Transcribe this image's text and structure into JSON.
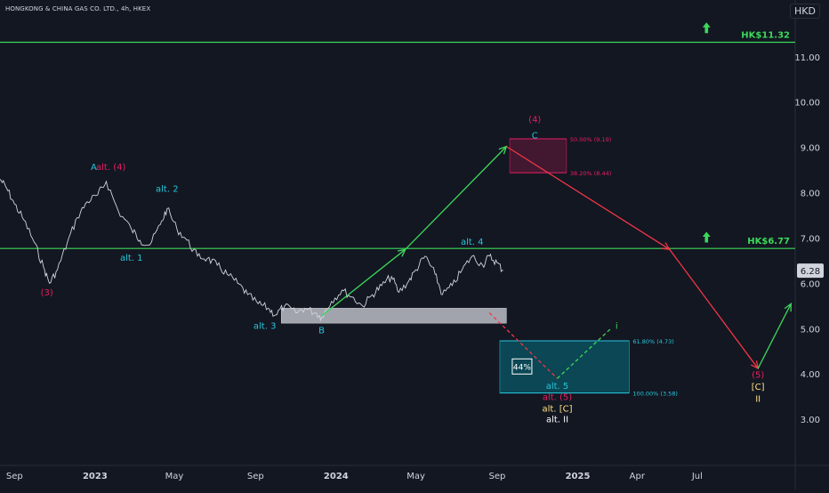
{
  "chart_title": "HONGKONG & CHINA GAS CO. LTD., 4h, HKEX",
  "currency": "HKD",
  "colors": {
    "background": "#131722",
    "axis_text": "#d1d4dc",
    "price": "#d1d4dc",
    "green": "#3cd85a",
    "red": "#f23645",
    "magenta": "#e91e63",
    "cyan": "#26c6da",
    "yellow": "#ffe082",
    "white": "#ffffff"
  },
  "chart_data": {
    "type": "line",
    "title": "HONGKONG & CHINA GAS CO. LTD., 4h, HKEX",
    "y_axis": {
      "ticks": [
        3.0,
        4.0,
        5.0,
        6.0,
        7.0,
        8.0,
        9.0,
        10.0,
        11.0
      ],
      "tick_labels": [
        "3.00",
        "4.00",
        "5.00",
        "6.00",
        "7.00",
        "8.00",
        "9.00",
        "10.00",
        "11.00"
      ],
      "range": [
        2.0,
        11.9
      ]
    },
    "x_axis": {
      "tick_labels": [
        "Sep",
        "2023",
        "May",
        "Sep",
        "2024",
        "May",
        "Sep",
        "2025",
        "Apr",
        "Jul"
      ],
      "tick_dates": [
        "2022-09-01",
        "2023-01-01",
        "2023-05-01",
        "2023-09-01",
        "2024-01-01",
        "2024-05-01",
        "2024-09-01",
        "2025-01-01",
        "2025-04-01",
        "2025-07-01"
      ],
      "range": [
        "2022-08-10",
        "2025-11-25"
      ]
    },
    "current_price": {
      "value": 6.28,
      "label": "6.28"
    },
    "price_path": [
      [
        "2022-08-10",
        8.3
      ],
      [
        "2022-08-20",
        8.1
      ],
      [
        "2022-09-01",
        7.75
      ],
      [
        "2022-09-15",
        7.4
      ],
      [
        "2022-10-01",
        6.9
      ],
      [
        "2022-10-15",
        6.35
      ],
      [
        "2022-10-24",
        6.0
      ],
      [
        "2022-11-05",
        6.3
      ],
      [
        "2022-11-20",
        6.9
      ],
      [
        "2022-12-05",
        7.45
      ],
      [
        "2022-12-20",
        7.8
      ],
      [
        "2023-01-05",
        7.95
      ],
      [
        "2023-01-18",
        8.25
      ],
      [
        "2023-02-05",
        7.6
      ],
      [
        "2023-02-25",
        7.2
      ],
      [
        "2023-03-10",
        6.95
      ],
      [
        "2023-03-25",
        6.85
      ],
      [
        "2023-04-10",
        7.3
      ],
      [
        "2023-04-20",
        7.65
      ],
      [
        "2023-05-05",
        7.2
      ],
      [
        "2023-05-20",
        6.95
      ],
      [
        "2023-06-05",
        6.6
      ],
      [
        "2023-06-20",
        6.55
      ],
      [
        "2023-07-05",
        6.4
      ],
      [
        "2023-07-20",
        6.2
      ],
      [
        "2023-08-05",
        6.0
      ],
      [
        "2023-08-20",
        5.75
      ],
      [
        "2023-09-05",
        5.55
      ],
      [
        "2023-09-20",
        5.45
      ],
      [
        "2023-10-01",
        5.3
      ],
      [
        "2023-10-15",
        5.5
      ],
      [
        "2023-11-01",
        5.35
      ],
      [
        "2023-11-15",
        5.45
      ],
      [
        "2023-12-01",
        5.35
      ],
      [
        "2023-12-10",
        5.25
      ],
      [
        "2023-12-25",
        5.6
      ],
      [
        "2024-01-10",
        5.85
      ],
      [
        "2024-01-25",
        5.7
      ],
      [
        "2024-02-10",
        5.5
      ],
      [
        "2024-02-25",
        5.75
      ],
      [
        "2024-03-10",
        5.95
      ],
      [
        "2024-03-25",
        6.15
      ],
      [
        "2024-04-05",
        5.8
      ],
      [
        "2024-04-20",
        6.05
      ],
      [
        "2024-05-01",
        6.3
      ],
      [
        "2024-05-15",
        6.6
      ],
      [
        "2024-05-30",
        6.2
      ],
      [
        "2024-06-10",
        5.75
      ],
      [
        "2024-06-25",
        5.95
      ],
      [
        "2024-07-10",
        6.3
      ],
      [
        "2024-07-25",
        6.6
      ],
      [
        "2024-08-10",
        6.4
      ],
      [
        "2024-08-20",
        6.6
      ],
      [
        "2024-09-01",
        6.45
      ],
      [
        "2024-09-10",
        6.28
      ]
    ],
    "horizontal_lines": [
      {
        "value": 11.32,
        "label": "HK$11.32"
      },
      {
        "value": 6.77,
        "label": "HK$6.77"
      }
    ],
    "boxes": [
      {
        "name": "wave-4-target-zone",
        "x": [
          "2024-09-20",
          "2024-12-15"
        ],
        "y": [
          8.44,
          9.19
        ],
        "levels": [
          "50.00% (9.19)",
          "38.20% (8.44)"
        ]
      },
      {
        "name": "support-zone",
        "x": [
          "2023-10-10",
          "2024-09-15"
        ],
        "y": [
          5.12,
          5.45
        ]
      },
      {
        "name": "alt-target-zone",
        "x": [
          "2024-09-05",
          "2025-03-20"
        ],
        "y": [
          3.58,
          4.73
        ],
        "levels": [
          "61.80% (4.73)",
          "100.00% (3.58)"
        ],
        "badge": "44%"
      }
    ],
    "projections": [
      {
        "name": "green-up-path",
        "points": [
          [
            "2023-12-10",
            5.28
          ],
          [
            "2024-04-15",
            6.75
          ],
          [
            "2024-09-15",
            9.02
          ]
        ]
      },
      {
        "name": "red-down-path",
        "points": [
          [
            "2024-09-15",
            9.02
          ],
          [
            "2025-05-20",
            6.75
          ],
          [
            "2025-10-01",
            4.12
          ]
        ]
      },
      {
        "name": "green-final-up",
        "points": [
          [
            "2025-10-01",
            4.12
          ],
          [
            "2025-11-20",
            5.55
          ]
        ]
      },
      {
        "name": "alt-red-dashed",
        "points": [
          [
            "2024-08-20",
            5.35
          ],
          [
            "2024-12-01",
            3.9
          ]
        ],
        "dashed": true
      },
      {
        "name": "alt-green-dashed",
        "points": [
          [
            "2024-12-01",
            3.9
          ],
          [
            "2025-02-20",
            5.0
          ]
        ],
        "dashed": true
      }
    ],
    "wave_labels": [
      {
        "text": "A",
        "x": "2022-12-30",
        "y": 8.5,
        "color": "cyan"
      },
      {
        "text": "alt. (4)",
        "x": "2023-01-25",
        "y": 8.5,
        "color": "magenta"
      },
      {
        "text": "(3)",
        "x": "2022-10-20",
        "y": 5.73,
        "color": "magenta"
      },
      {
        "text": "alt. 2",
        "x": "2023-04-20",
        "y": 8.02,
        "color": "cyan"
      },
      {
        "text": "alt. 1",
        "x": "2023-02-25",
        "y": 6.5,
        "color": "cyan"
      },
      {
        "text": "alt. 3",
        "x": "2023-09-15",
        "y": 5.0,
        "color": "cyan"
      },
      {
        "text": "B",
        "x": "2023-12-10",
        "y": 4.9,
        "color": "cyan"
      },
      {
        "text": "alt. 4",
        "x": "2024-07-25",
        "y": 6.85,
        "color": "cyan"
      },
      {
        "text": "(4)",
        "x": "2024-10-28",
        "y": 9.55,
        "color": "magenta"
      },
      {
        "text": "C",
        "x": "2024-10-28",
        "y": 9.2,
        "color": "cyan"
      },
      {
        "text": "alt. 5",
        "x": "2024-12-01",
        "y": 3.67,
        "color": "cyan"
      },
      {
        "text": "alt. (5)",
        "x": "2024-12-01",
        "y": 3.42,
        "color": "magenta"
      },
      {
        "text": "alt. [C]",
        "x": "2024-12-01",
        "y": 3.17,
        "color": "yellow"
      },
      {
        "text": "alt. II",
        "x": "2024-12-01",
        "y": 2.93,
        "color": "white"
      },
      {
        "text": "i",
        "x": "2025-03-01",
        "y": 5.0,
        "color": "green"
      },
      {
        "text": "(5)",
        "x": "2025-10-01",
        "y": 3.92,
        "color": "magenta"
      },
      {
        "text": "[C]",
        "x": "2025-10-01",
        "y": 3.65,
        "color": "yellow"
      },
      {
        "text": "II",
        "x": "2025-10-01",
        "y": 3.38,
        "color": "yellow"
      }
    ],
    "arrow_markers": [
      {
        "x": "2025-07-15",
        "y": 11.62
      },
      {
        "x": "2025-07-15",
        "y": 7.0
      }
    ]
  }
}
